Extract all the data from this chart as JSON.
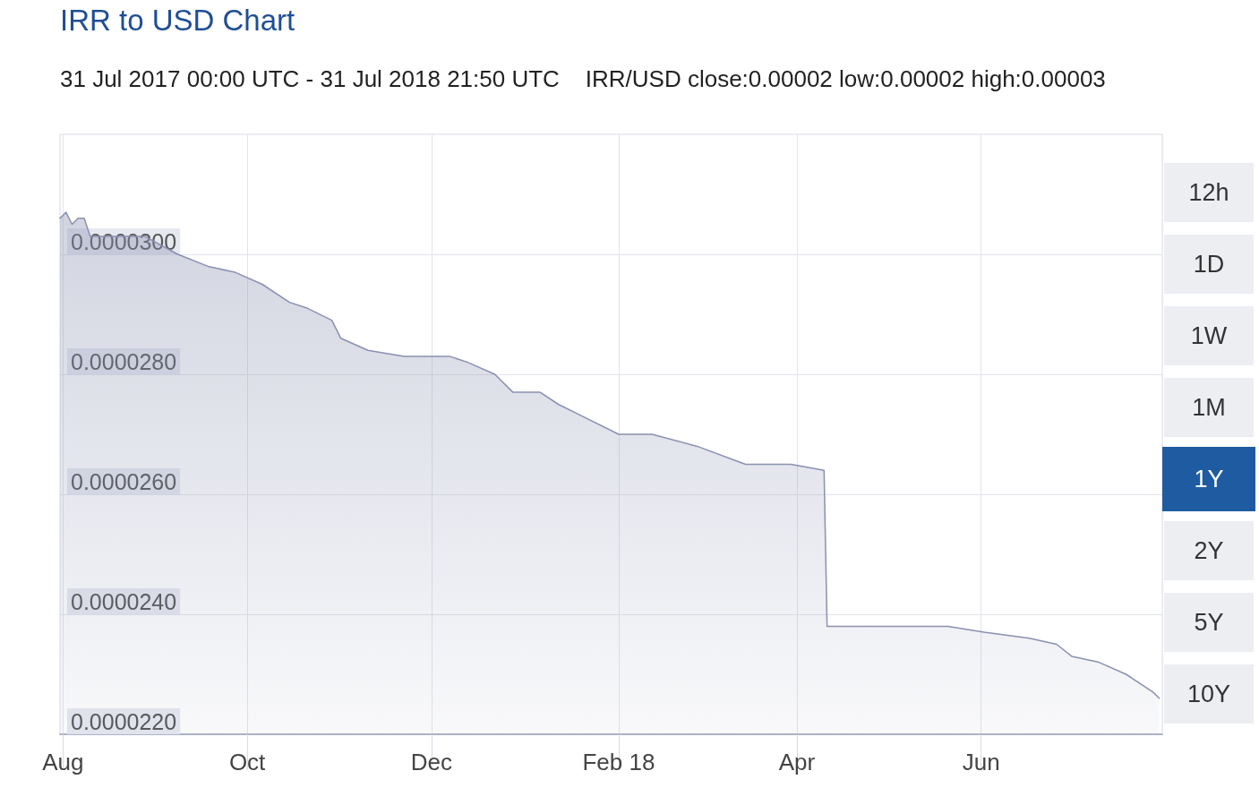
{
  "chart_data": {
    "type": "area",
    "title": "IRR to USD Chart",
    "subtitle": "31 Jul 2017 00:00 UTC - 31 Jul 2018 21:50 UTC    IRR/USD close:0.00002 low:0.00002 high:0.00003",
    "annotations": [
      "12h",
      "1D",
      "1W",
      "1M",
      "1Y",
      "2Y",
      "5Y",
      "10Y"
    ],
    "x": [
      "2017-07-31",
      "2017-08-02",
      "2017-08-04",
      "2017-08-06",
      "2017-08-08",
      "2017-08-10",
      "2017-08-19",
      "2017-08-28",
      "2017-09-08",
      "2017-09-18",
      "2017-09-27",
      "2017-10-06",
      "2017-10-15",
      "2017-10-21",
      "2017-10-29",
      "2017-11-01",
      "2017-11-10",
      "2017-11-22",
      "2017-12-07",
      "2017-12-13",
      "2017-12-22",
      "2017-12-28",
      "2018-01-06",
      "2018-01-12",
      "2018-01-20",
      "2018-02-01",
      "2018-02-12",
      "2018-02-27",
      "2018-03-15",
      "2018-03-30",
      "2018-04-10",
      "2018-04-11",
      "2018-05-03",
      "2018-05-21",
      "2018-06-02",
      "2018-06-17",
      "2018-06-26",
      "2018-07-01",
      "2018-07-10",
      "2018-07-19",
      "2018-07-25",
      "2018-07-28",
      "2018-07-30"
    ],
    "series": [
      {
        "color": "#8a90b0",
        "values": [
          3.06e-05,
          3.07e-05,
          3.05e-05,
          3.06e-05,
          3.06e-05,
          3.03e-05,
          3.03e-05,
          3.03e-05,
          3e-05,
          2.98e-05,
          2.97e-05,
          2.95e-05,
          2.92e-05,
          2.91e-05,
          2.89e-05,
          2.86e-05,
          2.84e-05,
          2.83e-05,
          2.83e-05,
          2.82e-05,
          2.8e-05,
          2.77e-05,
          2.77e-05,
          2.75e-05,
          2.73e-05,
          2.7e-05,
          2.7e-05,
          2.68e-05,
          2.65e-05,
          2.65e-05,
          2.64e-05,
          2.38e-05,
          2.38e-05,
          2.38e-05,
          2.37e-05,
          2.36e-05,
          2.35e-05,
          2.33e-05,
          2.32e-05,
          2.3e-05,
          2.28e-05,
          2.27e-05,
          2.26e-05
        ]
      }
    ],
    "xlim": [
      "2017-07-31",
      "2018-07-31"
    ],
    "xticks": [
      {
        "value": "2017-08-01",
        "label": "Aug"
      },
      {
        "value": "2017-10-01",
        "label": "Oct"
      },
      {
        "value": "2017-12-01",
        "label": "Dec"
      },
      {
        "value": "2018-02-01",
        "label": "Feb 18"
      },
      {
        "value": "2018-04-01",
        "label": "Apr"
      },
      {
        "value": "2018-06-01",
        "label": "Jun"
      }
    ],
    "ylim": [
      2.2e-05,
      3.2e-05
    ],
    "yticks": [
      {
        "value": 2.2e-05,
        "label": "0.0000220"
      },
      {
        "value": 2.4e-05,
        "label": "0.0000240"
      },
      {
        "value": 2.6e-05,
        "label": "0.0000260"
      },
      {
        "value": 2.8e-05,
        "label": "0.0000280"
      },
      {
        "value": 3e-05,
        "label": "0.0000300"
      }
    ],
    "grid": true,
    "marker": "none",
    "line_style": "solid"
  }
}
